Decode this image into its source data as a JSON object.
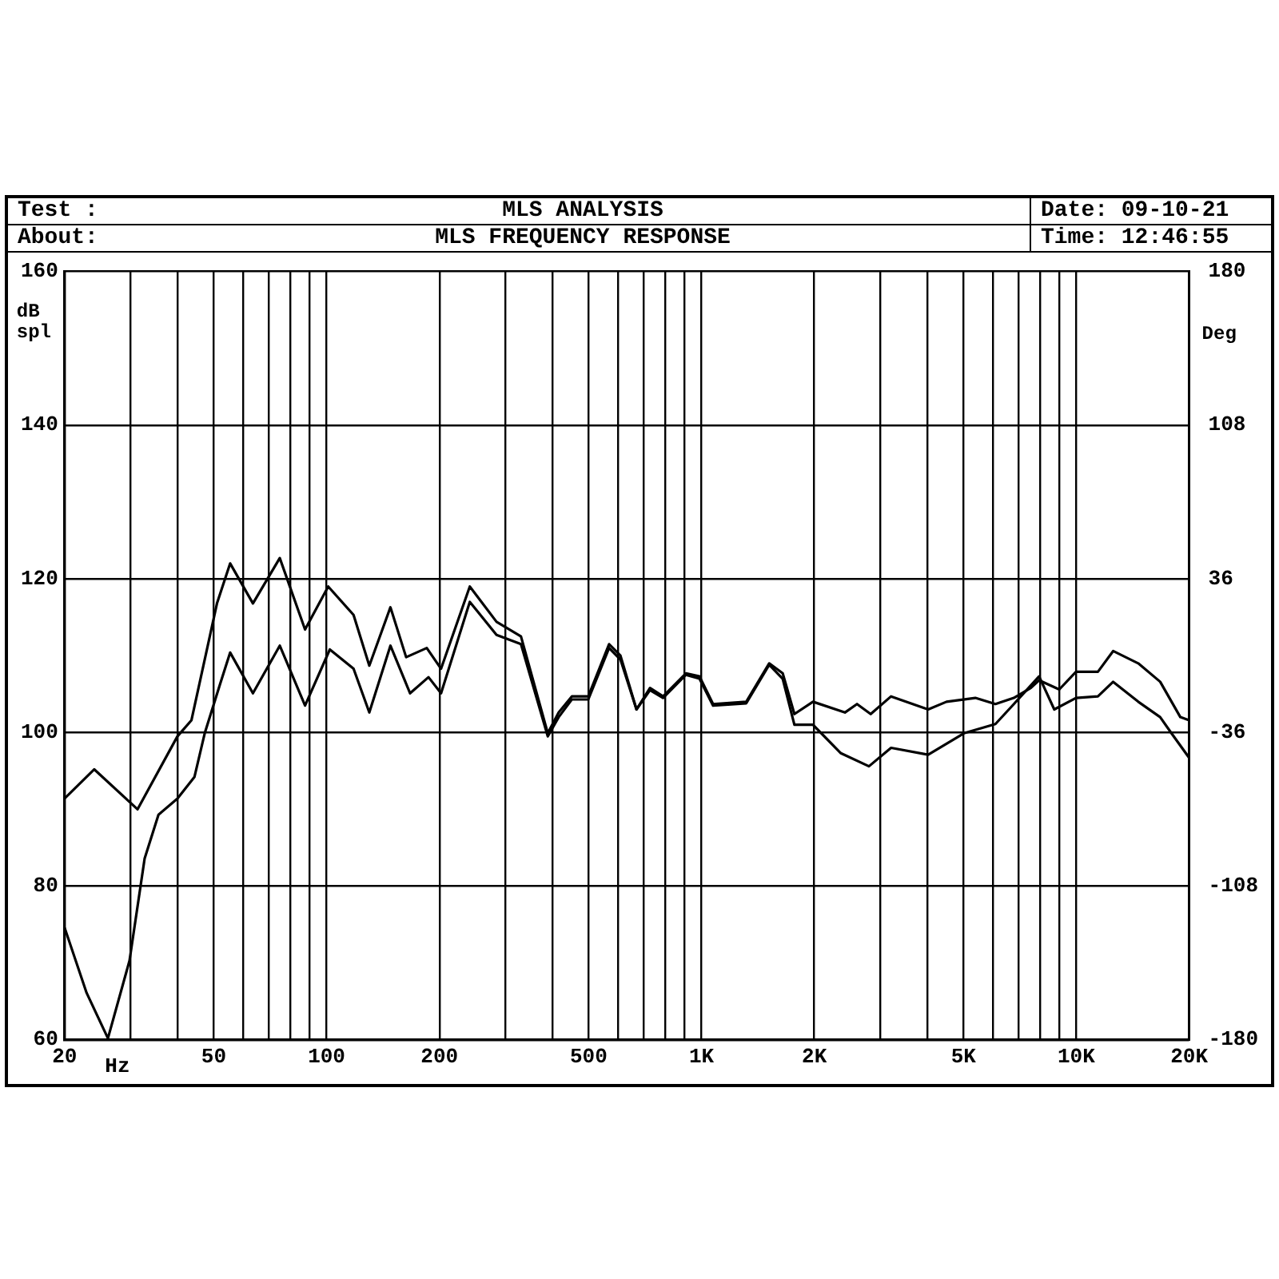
{
  "chart_data": {
    "type": "line",
    "title": "MLS ANALYSIS",
    "subtitle": "MLS FREQUENCY RESPONSE",
    "annotations": [
      "Test :",
      "About:",
      "Date: 09-10-21",
      "Time: 12:46:55"
    ],
    "xlabel": "Hz",
    "ylabel": "dB spl",
    "y2label": "Deg",
    "log": "x",
    "grid": true,
    "legend": false,
    "marker": "none",
    "line_style": "solid",
    "xlim": [
      20,
      20000
    ],
    "xticks": [
      20,
      {
        "value": 30,
        "label": null
      },
      {
        "value": 40,
        "label": null
      },
      50,
      {
        "value": 60,
        "label": null
      },
      {
        "value": 70,
        "label": null
      },
      {
        "value": 80,
        "label": null
      },
      {
        "value": 90,
        "label": null
      },
      100,
      200,
      {
        "value": 300,
        "label": null
      },
      {
        "value": 400,
        "label": null
      },
      500,
      {
        "value": 600,
        "label": null
      },
      {
        "value": 700,
        "label": null
      },
      {
        "value": 800,
        "label": null
      },
      {
        "value": 900,
        "label": null
      },
      {
        "value": 1000,
        "label": "1K"
      },
      {
        "value": 2000,
        "label": "2K"
      },
      {
        "value": 3000,
        "label": null
      },
      {
        "value": 4000,
        "label": null
      },
      {
        "value": 5000,
        "label": "5K"
      },
      {
        "value": 6000,
        "label": null
      },
      {
        "value": 7000,
        "label": null
      },
      {
        "value": 8000,
        "label": null
      },
      {
        "value": 9000,
        "label": null
      },
      {
        "value": 10000,
        "label": "10K"
      },
      {
        "value": 20000,
        "label": "20K"
      }
    ],
    "ylim": [
      60,
      160
    ],
    "yticks": [
      60,
      80,
      100,
      120,
      140,
      160
    ],
    "y2lim": [
      -180,
      180
    ],
    "y2ticks": [
      -180,
      -108,
      -36,
      36,
      108,
      180
    ],
    "series": [
      {
        "color": "#000000",
        "x": [
          20,
          24,
          31.3,
          40,
          43.6,
          51,
          55.3,
          63.6,
          75,
          87.6,
          101,
          118,
          130,
          148,
          163,
          185,
          202,
          241,
          284,
          330,
          389,
          416,
          451,
          499,
          567,
          608,
          671,
          729,
          790,
          909,
          988,
          1074,
          1317,
          1516,
          1647,
          1770,
          1984,
          2414,
          2600,
          2828,
          3205,
          4025,
          4506,
          5378,
          6085,
          6815,
          7561,
          7956,
          9006,
          9982,
          11420,
          12540,
          14630,
          16740,
          18950,
          20000
        ],
        "values": [
          91.4,
          95.2,
          90,
          99.5,
          101.6,
          116.8,
          122,
          116.8,
          122.7,
          113.4,
          119,
          115.3,
          108.7,
          116.3,
          109.8,
          111,
          108.3,
          119,
          114.4,
          112.5,
          99.9,
          102.6,
          104.7,
          104.7,
          111.5,
          110,
          103,
          105.8,
          104.7,
          107.7,
          107.3,
          103.7,
          104,
          109,
          107.7,
          102.4,
          104,
          102.6,
          103.7,
          102.4,
          104.7,
          103,
          104,
          104.5,
          103.7,
          104.5,
          105.8,
          106.8,
          105.6,
          107.9,
          107.9,
          110.6,
          109,
          106.6,
          102,
          101.6
        ]
      },
      {
        "color": "#000000",
        "x": [
          20,
          22.9,
          26.1,
          29.8,
          32.7,
          35.6,
          40,
          44.4,
          47.3,
          51.9,
          55.3,
          63.6,
          75,
          87.6,
          102,
          118,
          130,
          148,
          167,
          187,
          202,
          241,
          284,
          330,
          389,
          416,
          451,
          499,
          567,
          608,
          671,
          729,
          790,
          909,
          988,
          1074,
          1317,
          1516,
          1647,
          1770,
          1984,
          2355,
          2798,
          3205,
          4025,
          5014,
          6085,
          6815,
          7956,
          8734,
          9982,
          11420,
          12540,
          14630,
          16740,
          17940,
          20000
        ],
        "values": [
          74.6,
          66.1,
          60.2,
          70.3,
          83.6,
          89.3,
          91.4,
          94.2,
          99.9,
          106.2,
          110.4,
          105.1,
          111.3,
          103.5,
          110.8,
          108.3,
          102.6,
          111.3,
          105.1,
          107.2,
          105.1,
          117,
          112.7,
          111.5,
          99.5,
          102,
          104.3,
          104.3,
          111,
          109.5,
          103,
          105.5,
          104.5,
          107.5,
          107,
          103.5,
          103.8,
          108.8,
          107,
          101,
          101,
          97.3,
          95.6,
          98,
          97.1,
          99.9,
          101.1,
          103.7,
          107.3,
          103,
          104.5,
          104.7,
          106.6,
          104,
          102,
          99.9,
          96.7
        ]
      }
    ]
  }
}
